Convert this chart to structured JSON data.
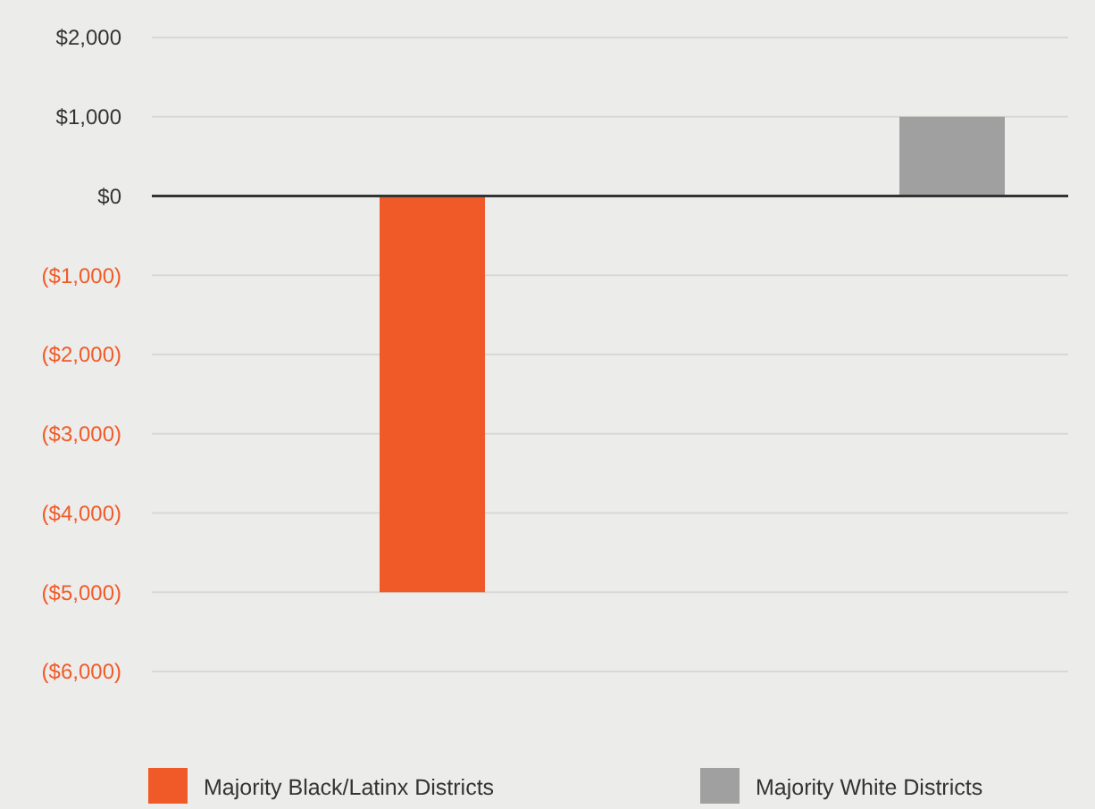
{
  "chart_data": {
    "type": "bar",
    "categories": [
      null,
      null
    ],
    "series": [
      {
        "name": "Majority Black/Latinx Districts",
        "color": "#f05a28",
        "values": [
          -5000,
          null
        ]
      },
      {
        "name": "Majority White Districts",
        "color": "#a0a0a0",
        "values": [
          null,
          1000
        ]
      }
    ],
    "ylim": [
      -6000,
      2000
    ],
    "yticks": [
      {
        "value": -6000,
        "label": "($6,000)"
      },
      {
        "value": -5000,
        "label": "($5,000)"
      },
      {
        "value": -4000,
        "label": "($4,000)"
      },
      {
        "value": -3000,
        "label": "($3,000)"
      },
      {
        "value": -2000,
        "label": "($2,000)"
      },
      {
        "value": -1000,
        "label": "($1,000)"
      },
      {
        "value": 0,
        "label": "$0"
      },
      {
        "value": 1000,
        "label": "$1,000"
      },
      {
        "value": 2000,
        "label": "$2,000"
      }
    ],
    "grid": "y",
    "legend": "bottom"
  }
}
